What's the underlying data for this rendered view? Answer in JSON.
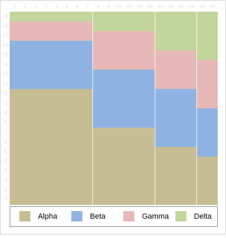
{
  "chart_data": {
    "type": "marimekko",
    "widths": [
      8,
      6,
      4,
      2
    ],
    "series": [
      {
        "name": "Alpha",
        "color": "#c7bd94",
        "values": [
          12,
          8,
          6,
          5
        ]
      },
      {
        "name": "Beta",
        "color": "#8eb3e2",
        "values": [
          5,
          6,
          6,
          5
        ]
      },
      {
        "name": "Gamma",
        "color": "#e6b9b8",
        "values": [
          2,
          4,
          4,
          5
        ]
      },
      {
        "name": "Delta",
        "color": "#c3d69b",
        "values": [
          1,
          2,
          4,
          5
        ]
      }
    ],
    "xlim": [
      0,
      20
    ],
    "ylim": [
      0,
      20
    ],
    "x_axis_labels": [
      "0",
      "1",
      "2",
      "3",
      "4",
      "5",
      "6",
      "7",
      "8",
      "9",
      "##",
      "##",
      "##",
      "##",
      "##",
      "##",
      "##",
      "##",
      "##",
      "##"
    ],
    "y_axis_labels": [
      "0",
      "1",
      "2",
      "3",
      "4",
      "5",
      "6",
      "7",
      "8",
      "9",
      "10",
      "11",
      "12",
      "13",
      "14",
      "15",
      "16",
      "17",
      "18",
      "19"
    ],
    "legend": "bottom"
  }
}
